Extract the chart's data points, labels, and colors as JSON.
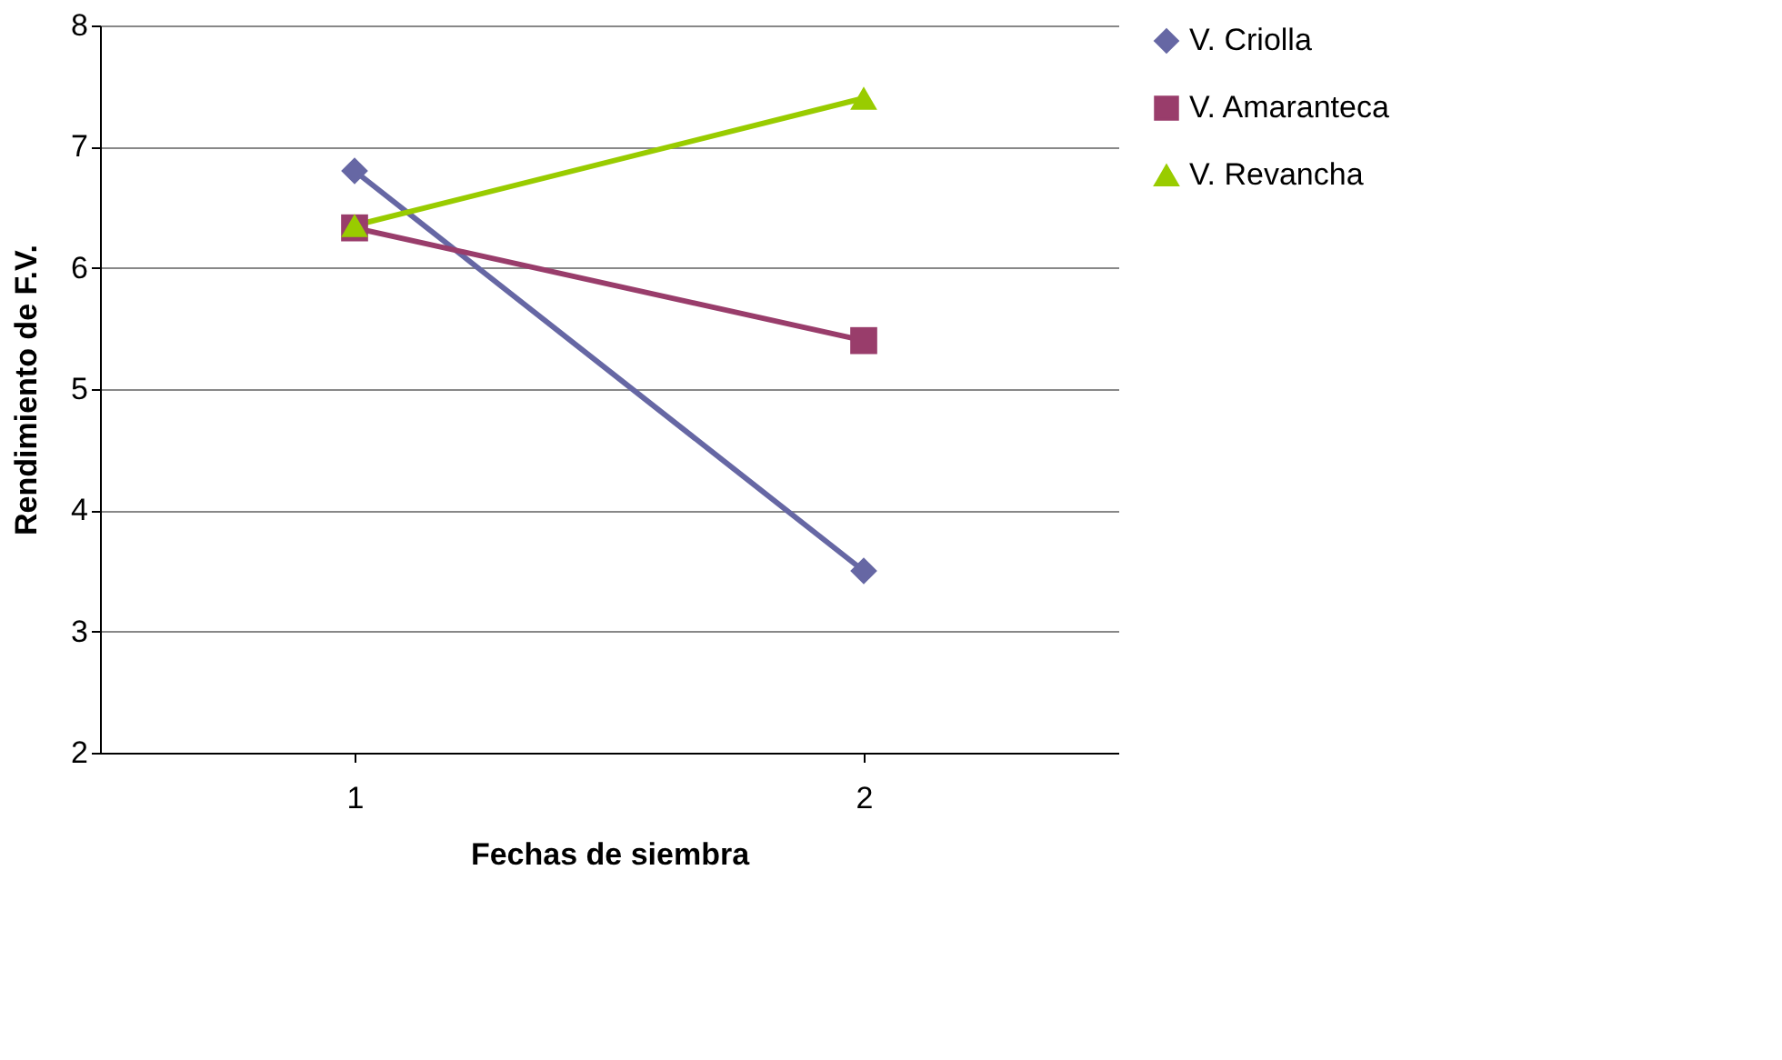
{
  "chart_data": {
    "type": "line",
    "xlabel": "Fechas de siembra",
    "ylabel": "Rendimiento de F.V.",
    "categories": [
      "1",
      "2"
    ],
    "ylim": [
      2,
      8
    ],
    "yticks": [
      2,
      3,
      4,
      5,
      6,
      7,
      8
    ],
    "grid": "y",
    "legend": "right",
    "series": [
      {
        "name": "V. Criolla",
        "color": "#6667a4",
        "marker": "diamond",
        "values": [
          6.8,
          3.5
        ]
      },
      {
        "name": "V. Amaranteca",
        "color": "#993d6b",
        "marker": "square",
        "values": [
          6.33,
          5.4
        ]
      },
      {
        "name": "V. Revancha",
        "color": "#99cc00",
        "marker": "triangle",
        "values": [
          6.35,
          7.4
        ]
      }
    ]
  }
}
